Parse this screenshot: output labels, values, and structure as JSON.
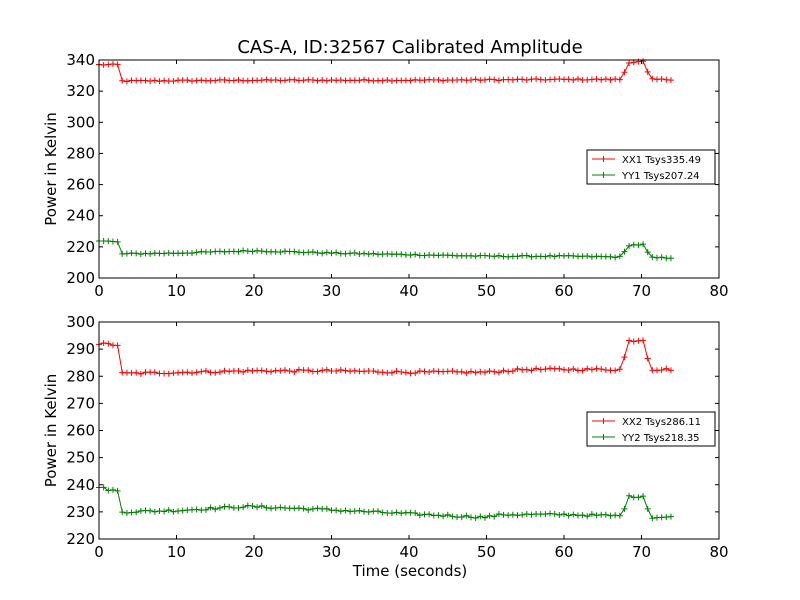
{
  "title": "CAS-A, ID:32567 Calibrated Amplitude",
  "chart_data": [
    {
      "type": "line",
      "ylabel": "Power in Kelvin",
      "xlabel": "",
      "xlim": [
        0,
        80
      ],
      "ylim": [
        200,
        340
      ],
      "xticks": [
        0,
        10,
        20,
        30,
        40,
        50,
        60,
        70,
        80
      ],
      "yticks": [
        200,
        220,
        240,
        260,
        280,
        300,
        320,
        340
      ],
      "grid": false,
      "legend_position": "center-right",
      "marker": "+",
      "sample_step": 0.6,
      "series": [
        {
          "name": "XX1 Tsys335.49",
          "color": "#ff0000",
          "points": [
            [
              0,
              337
            ],
            [
              2.5,
              337
            ],
            [
              3.0,
              326.5
            ],
            [
              20,
              327
            ],
            [
              40,
              327
            ],
            [
              60,
              327.5
            ],
            [
              67.5,
              327.5
            ],
            [
              68.2,
              338.5
            ],
            [
              70.5,
              339
            ],
            [
              71.0,
              327.5
            ],
            [
              73.8,
              327.5
            ]
          ]
        },
        {
          "name": "YY1 Tsys207.24",
          "color": "#008000",
          "points": [
            [
              0,
              224
            ],
            [
              2.5,
              223
            ],
            [
              3.0,
              215.5
            ],
            [
              10,
              216
            ],
            [
              20,
              217.5
            ],
            [
              30,
              216
            ],
            [
              40,
              215
            ],
            [
              50,
              214
            ],
            [
              60,
              214
            ],
            [
              67.5,
              213.5
            ],
            [
              68.2,
              221
            ],
            [
              70.5,
              221.5
            ],
            [
              71.0,
              213
            ],
            [
              73.8,
              213
            ]
          ]
        }
      ]
    },
    {
      "type": "line",
      "ylabel": "Power in Kelvin",
      "xlabel": "Time (seconds)",
      "xlim": [
        0,
        80
      ],
      "ylim": [
        220,
        300
      ],
      "xticks": [
        0,
        10,
        20,
        30,
        40,
        50,
        60,
        70,
        80
      ],
      "yticks": [
        220,
        230,
        240,
        250,
        260,
        270,
        280,
        290,
        300
      ],
      "grid": false,
      "legend_position": "center-right",
      "marker": "+",
      "sample_step": 0.6,
      "series": [
        {
          "name": "XX2 Tsys286.11",
          "color": "#ff0000",
          "points": [
            [
              0,
              292
            ],
            [
              2.5,
              291.5
            ],
            [
              3.0,
              281
            ],
            [
              20,
              282
            ],
            [
              30,
              282
            ],
            [
              40,
              281.5
            ],
            [
              50,
              281.5
            ],
            [
              55,
              282.5
            ],
            [
              67.5,
              282.5
            ],
            [
              68.2,
              293
            ],
            [
              70.5,
              293.5
            ],
            [
              71.0,
              282.5
            ],
            [
              73.8,
              282.5
            ]
          ]
        },
        {
          "name": "YY2 Tsys218.35",
          "color": "#008000",
          "points": [
            [
              0,
              239
            ],
            [
              2.5,
              237.5
            ],
            [
              3.0,
              230
            ],
            [
              10,
              230.5
            ],
            [
              19,
              232
            ],
            [
              28,
              231
            ],
            [
              35,
              230
            ],
            [
              42,
              229
            ],
            [
              50,
              228
            ],
            [
              52,
              229
            ],
            [
              60,
              229
            ],
            [
              67.5,
              228.5
            ],
            [
              68.2,
              235.5
            ],
            [
              70.5,
              236
            ],
            [
              71.0,
              228
            ],
            [
              73.8,
              228
            ]
          ]
        }
      ]
    }
  ]
}
